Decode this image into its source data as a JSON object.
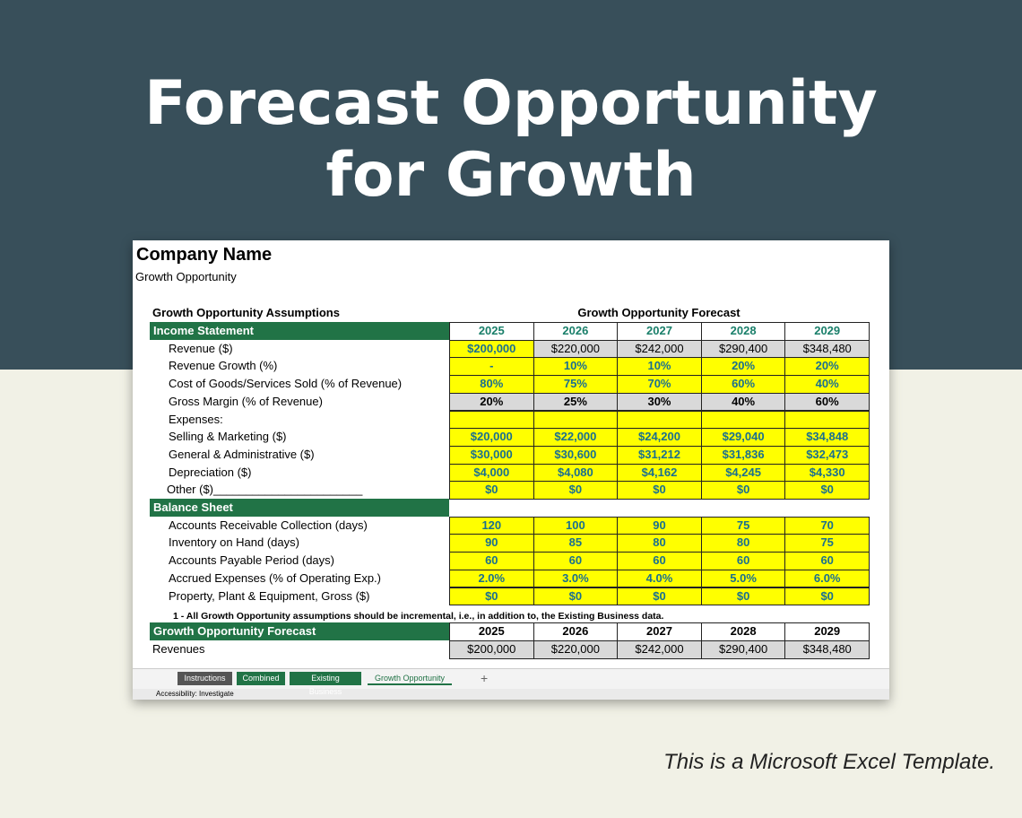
{
  "header": {
    "title_line1": "Forecast Opportunity",
    "title_line2": "for Growth"
  },
  "sheet": {
    "company": "Company Name",
    "subtitle": "Growth Opportunity",
    "assumptions_title": "Growth Opportunity Assumptions",
    "forecast_title": "Growth Opportunity Forecast",
    "income": {
      "title": "Income Statement",
      "years": [
        "2025",
        "2026",
        "2027",
        "2028",
        "2029"
      ],
      "rows": [
        {
          "label": "Revenue ($)",
          "values": [
            "$200,000",
            "$220,000",
            "$242,000",
            "$290,400",
            "$348,480"
          ]
        },
        {
          "label": "Revenue Growth (%)",
          "values": [
            "-",
            "10%",
            "10%",
            "20%",
            "20%"
          ]
        },
        {
          "label": "Cost of Goods/Services Sold (% of Revenue)",
          "values": [
            "80%",
            "75%",
            "70%",
            "60%",
            "40%"
          ]
        },
        {
          "label": "Gross Margin (% of Revenue)",
          "values": [
            "20%",
            "25%",
            "30%",
            "40%",
            "60%"
          ]
        },
        {
          "label": "Expenses:",
          "values": [
            null,
            null,
            null,
            null,
            null
          ]
        },
        {
          "label": "Selling & Marketing ($)",
          "values": [
            "$20,000",
            "$22,000",
            "$24,200",
            "$29,040",
            "$34,848"
          ]
        },
        {
          "label": "General & Administrative ($)",
          "values": [
            "$30,000",
            "$30,600",
            "$31,212",
            "$31,836",
            "$32,473"
          ]
        },
        {
          "label": "Depreciation ($)",
          "values": [
            "$4,000",
            "$4,080",
            "$4,162",
            "$4,245",
            "$4,330"
          ]
        },
        {
          "label": "Other ($)_______________________",
          "values": [
            "$0",
            "$0",
            "$0",
            "$0",
            "$0"
          ]
        }
      ]
    },
    "balance": {
      "title": "Balance Sheet",
      "rows": [
        {
          "label": "Accounts Receivable Collection (days)",
          "values": [
            "120",
            "100",
            "90",
            "75",
            "70"
          ]
        },
        {
          "label": "Inventory on Hand (days)",
          "values": [
            "90",
            "85",
            "80",
            "80",
            "75"
          ]
        },
        {
          "label": "Accounts Payable Period (days)",
          "values": [
            "60",
            "60",
            "60",
            "60",
            "60"
          ]
        },
        {
          "label": "Accrued Expenses (% of Operating Exp.)",
          "values": [
            "2.0%",
            "3.0%",
            "4.0%",
            "5.0%",
            "6.0%"
          ]
        },
        {
          "label": "Property, Plant & Equipment, Gross ($)",
          "values": [
            "$0",
            "$0",
            "$0",
            "$0",
            "$0"
          ]
        }
      ]
    },
    "note": "1 - All Growth Opportunity assumptions should be incremental, i.e., in addition to, the Existing Business data.",
    "forecast": {
      "title": "Growth Opportunity Forecast",
      "years": [
        "2025",
        "2026",
        "2027",
        "2028",
        "2029"
      ],
      "rows": [
        {
          "label": "Revenues",
          "values": [
            "$200,000",
            "$220,000",
            "$242,000",
            "$290,400",
            "$348,480"
          ]
        }
      ]
    },
    "tabs": [
      "Instructions",
      "Combined",
      "Existing Business",
      "Growth Opportunity"
    ],
    "status": "Accessibility: Investigate"
  },
  "footer": "This is a Microsoft Excel Template."
}
